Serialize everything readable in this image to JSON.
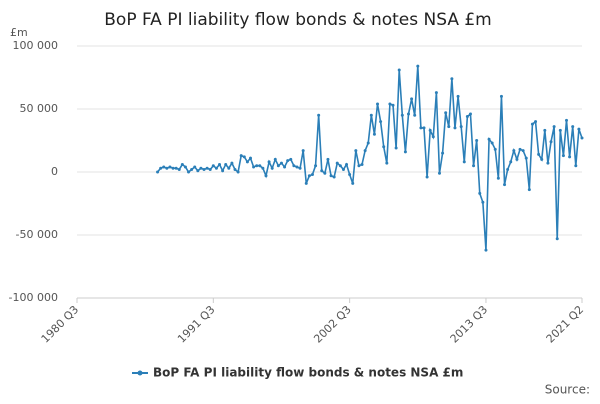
{
  "chart_data": {
    "type": "line",
    "title": "BoP FA PI liability flow bonds & notes NSA £m",
    "y_unit": "£m",
    "source": "Source:",
    "xlim": [
      1980.5,
      2021.25
    ],
    "xticks": [
      {
        "value": 1980.5,
        "label": "1980 Q3"
      },
      {
        "value": 1991.5,
        "label": "1991 Q3"
      },
      {
        "value": 2002.5,
        "label": "2002 Q3"
      },
      {
        "value": 2013.5,
        "label": "2013 Q3"
      },
      {
        "value": 2021.25,
        "label": "2021 Q2"
      }
    ],
    "ylim": [
      -100000,
      100000
    ],
    "yticks": [
      {
        "value": -100000,
        "label": "-100 000"
      },
      {
        "value": -50000,
        "label": "-50 000"
      },
      0,
      {
        "value": 50000,
        "label": "50 000"
      },
      {
        "value": 100000,
        "label": "100 000"
      }
    ],
    "grid": true,
    "legend": "bottom",
    "x": [
      1987,
      1987.25,
      1987.5,
      1987.75,
      1988,
      1988.25,
      1988.5,
      1988.75,
      1989,
      1989.25,
      1989.5,
      1989.75,
      1990,
      1990.25,
      1990.5,
      1990.75,
      1991,
      1991.25,
      1991.5,
      1991.75,
      1992,
      1992.25,
      1992.5,
      1992.75,
      1993,
      1993.25,
      1993.5,
      1993.75,
      1994,
      1994.25,
      1994.5,
      1994.75,
      1995,
      1995.25,
      1995.5,
      1995.75,
      1996,
      1996.25,
      1996.5,
      1996.75,
      1997,
      1997.25,
      1997.5,
      1997.75,
      1998,
      1998.25,
      1998.5,
      1998.75,
      1999,
      1999.25,
      1999.5,
      1999.75,
      2000,
      2000.25,
      2000.5,
      2000.75,
      2001,
      2001.25,
      2001.5,
      2001.75,
      2002,
      2002.25,
      2002.5,
      2002.75,
      2003,
      2003.25,
      2003.5,
      2003.75,
      2004,
      2004.25,
      2004.5,
      2004.75,
      2005,
      2005.25,
      2005.5,
      2005.75,
      2006,
      2006.25,
      2006.5,
      2006.75,
      2007,
      2007.25,
      2007.5,
      2007.75,
      2008,
      2008.25,
      2008.5,
      2008.75,
      2009,
      2009.25,
      2009.5,
      2009.75,
      2010,
      2010.25,
      2010.5,
      2010.75,
      2011,
      2011.25,
      2011.5,
      2011.75,
      2012,
      2012.25,
      2012.5,
      2012.75,
      2013,
      2013.25,
      2013.5,
      2013.75,
      2014,
      2014.25,
      2014.5,
      2014.75,
      2015,
      2015.25,
      2015.5,
      2015.75,
      2016,
      2016.25,
      2016.5,
      2016.75,
      2017,
      2017.25,
      2017.5,
      2017.75,
      2018,
      2018.25,
      2018.5,
      2018.75,
      2019,
      2019.25,
      2019.5,
      2019.75,
      2020,
      2020.25,
      2020.5,
      2020.75,
      2021,
      2021.25
    ],
    "series": [
      {
        "name": "BoP FA PI liability flow bonds & notes NSA £m",
        "color": "#2b7fb8",
        "values": [
          0,
          3000,
          4000,
          3000,
          4000,
          3000,
          3000,
          2000,
          6000,
          4000,
          0,
          2000,
          4000,
          1000,
          3000,
          2000,
          3000,
          2000,
          5000,
          3000,
          6000,
          1000,
          6000,
          3000,
          7000,
          2000,
          0,
          13000,
          12000,
          8000,
          11000,
          4000,
          5000,
          5000,
          3000,
          -3000,
          8000,
          3000,
          10000,
          5000,
          7000,
          4000,
          9000,
          10000,
          5000,
          4000,
          3000,
          17000,
          -9000,
          -3000,
          -2000,
          5000,
          45000,
          1000,
          -1000,
          10000,
          -3000,
          -4000,
          7000,
          5000,
          2000,
          6000,
          -2000,
          -9000,
          17000,
          5000,
          6000,
          17000,
          23000,
          45000,
          30000,
          54000,
          40000,
          20000,
          7000,
          54000,
          53000,
          19000,
          81000,
          45000,
          16000,
          46000,
          58000,
          45000,
          84000,
          35000,
          35000,
          -4000,
          33000,
          28000,
          63000,
          -1000,
          15000,
          47000,
          36000,
          74000,
          35000,
          60000,
          36000,
          8000,
          44000,
          46000,
          5000,
          25000,
          -17000,
          -24000,
          -62000,
          26000,
          23000,
          18000,
          -5000,
          60000,
          -10000,
          2000,
          8000,
          17000,
          10000,
          18000,
          17000,
          11000,
          -14000,
          38000,
          40000,
          14000,
          10000,
          33000,
          7000,
          24000,
          36000,
          -53000,
          33000,
          13000,
          41000,
          12000,
          36000,
          5000,
          34000,
          27000
        ]
      }
    ]
  }
}
